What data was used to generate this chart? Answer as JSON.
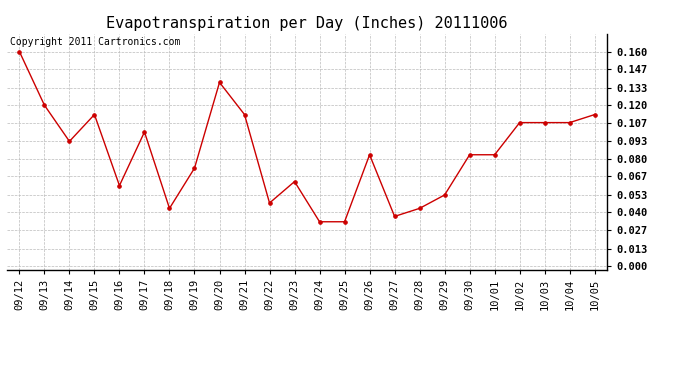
{
  "title": "Evapotranspiration per Day (Inches) 20111006",
  "copyright_text": "Copyright 2011 Cartronics.com",
  "x_labels": [
    "09/12",
    "09/13",
    "09/14",
    "09/15",
    "09/16",
    "09/17",
    "09/18",
    "09/19",
    "09/20",
    "09/21",
    "09/22",
    "09/23",
    "09/24",
    "09/25",
    "09/26",
    "09/27",
    "09/28",
    "09/29",
    "09/30",
    "10/01",
    "10/02",
    "10/03",
    "10/04",
    "10/05"
  ],
  "y_values": [
    0.16,
    0.12,
    0.093,
    0.113,
    0.06,
    0.1,
    0.043,
    0.073,
    0.137,
    0.113,
    0.047,
    0.063,
    0.033,
    0.033,
    0.083,
    0.037,
    0.043,
    0.053,
    0.083,
    0.083,
    0.107,
    0.107,
    0.107,
    0.113
  ],
  "y_ticks": [
    0.0,
    0.013,
    0.027,
    0.04,
    0.053,
    0.067,
    0.08,
    0.093,
    0.107,
    0.12,
    0.133,
    0.147,
    0.16
  ],
  "line_color": "#cc0000",
  "marker_color": "#cc0000",
  "background_color": "#ffffff",
  "grid_color": "#bbbbbb",
  "title_fontsize": 11,
  "copyright_fontsize": 7,
  "tick_fontsize": 7.5,
  "ylim_max": 0.1733
}
